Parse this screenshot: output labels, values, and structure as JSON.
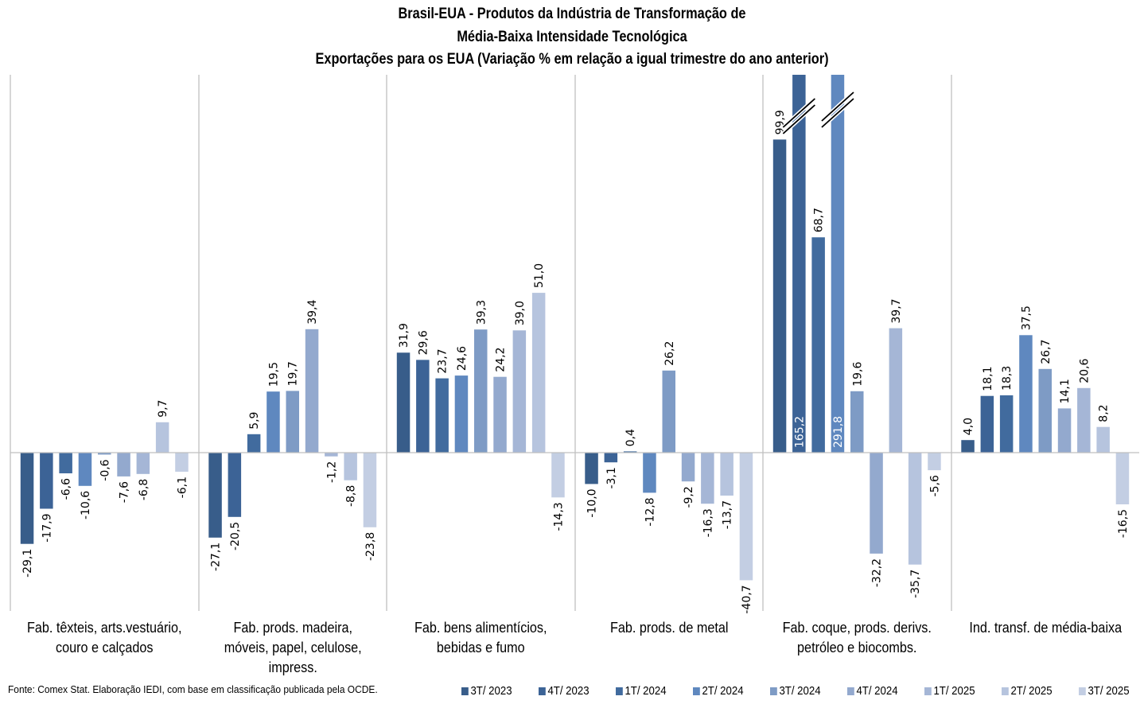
{
  "chart_data": {
    "type": "bar",
    "title": "Brasil-EUA - Produtos da Indústria de Transformação de",
    "title_line2": "Média-Baixa Intensidade Tecnológica",
    "subtitle": "Exportações para os EUA (Variação % em relação a igual trimestre do ano anterior)",
    "xlabel": "",
    "ylabel": "",
    "grid": false,
    "legend_position": "bottom-right",
    "ylim": [
      -50,
      120
    ],
    "axis_break_note": "Bars 165,2 and 291,8 are truncated with break marks",
    "categories": [
      [
        "Fab. têxteis, arts.vestuário,",
        "couro e calçados"
      ],
      [
        "Fab. prods. madeira,",
        "móveis, papel, celulose,",
        "impress."
      ],
      [
        "Fab. bens alimentícios,",
        "bebidas e fumo"
      ],
      [
        "Fab. prods. de metal"
      ],
      [
        "Fab. coque, prods. derivs.",
        "petróleo e biocombs."
      ],
      [
        "Ind. transf. de média-baixa"
      ]
    ],
    "series": [
      {
        "name": "3T/ 2023",
        "color": "#385D8A",
        "values": [
          -29.1,
          -27.1,
          31.9,
          -10.0,
          99.9,
          4.0
        ],
        "labels": [
          "-29,1",
          "-27,1",
          "31,9",
          "-10,0",
          "99,9",
          "4,0"
        ]
      },
      {
        "name": "4T/ 2023",
        "color": "#3C6396",
        "values": [
          -17.9,
          -20.5,
          29.6,
          -3.1,
          165.2,
          18.1
        ],
        "labels": [
          "-17,9",
          "-20,5",
          "29,6",
          "-3,1",
          "165,2",
          "18,1"
        ]
      },
      {
        "name": "1T/ 2024",
        "color": "#416B9E",
        "values": [
          -6.6,
          5.9,
          23.7,
          0.4,
          68.7,
          18.3
        ],
        "labels": [
          "-6,6",
          "5,9",
          "23,7",
          "0,4",
          "68,7",
          "18,3"
        ]
      },
      {
        "name": "2T/ 2024",
        "color": "#5F88BF",
        "values": [
          -10.6,
          19.5,
          24.6,
          -12.8,
          291.8,
          37.5
        ],
        "labels": [
          "-10,6",
          "19,5",
          "24,6",
          "-12,8",
          "291,8",
          "37,5"
        ]
      },
      {
        "name": "3T/ 2024",
        "color": "#7E9BC5",
        "values": [
          -0.6,
          19.7,
          39.3,
          26.2,
          19.6,
          26.7
        ],
        "labels": [
          "-0,6",
          "19,7",
          "39,3",
          "26,2",
          "19,6",
          "26,7"
        ]
      },
      {
        "name": "4T/ 2024",
        "color": "#93A9CE",
        "values": [
          -7.6,
          39.4,
          24.2,
          -9.2,
          -32.2,
          14.1
        ],
        "labels": [
          "-7,6",
          "39,4",
          "24,2",
          "-9,2",
          "-32,2",
          "14,1"
        ]
      },
      {
        "name": "1T/ 2025",
        "color": "#A5B6D6",
        "values": [
          -6.8,
          -1.2,
          39.0,
          -16.3,
          39.7,
          20.6
        ],
        "labels": [
          "-6,8",
          "-1,2",
          "39,0",
          "-16,3",
          "39,7",
          "20,6"
        ]
      },
      {
        "name": "2T/ 2025",
        "color": "#B6C4DE",
        "values": [
          9.7,
          -8.8,
          51.0,
          -13.7,
          -35.7,
          8.2
        ],
        "labels": [
          "9,7",
          "-8,8",
          "51,0",
          "-13,7",
          "-35,7",
          "8,2"
        ]
      },
      {
        "name": "3T/ 2025",
        "color": "#C3CEE3",
        "values": [
          -6.1,
          -23.8,
          -14.3,
          -40.7,
          -5.6,
          -16.5
        ],
        "labels": [
          "-6,1",
          "-23,8",
          "-14,3",
          "-40,7",
          "-5,6",
          "-16,5"
        ]
      }
    ],
    "source": "Fonte: Comex Stat. Elaboração IEDI, com base em classificação publicada pela OCDE."
  }
}
